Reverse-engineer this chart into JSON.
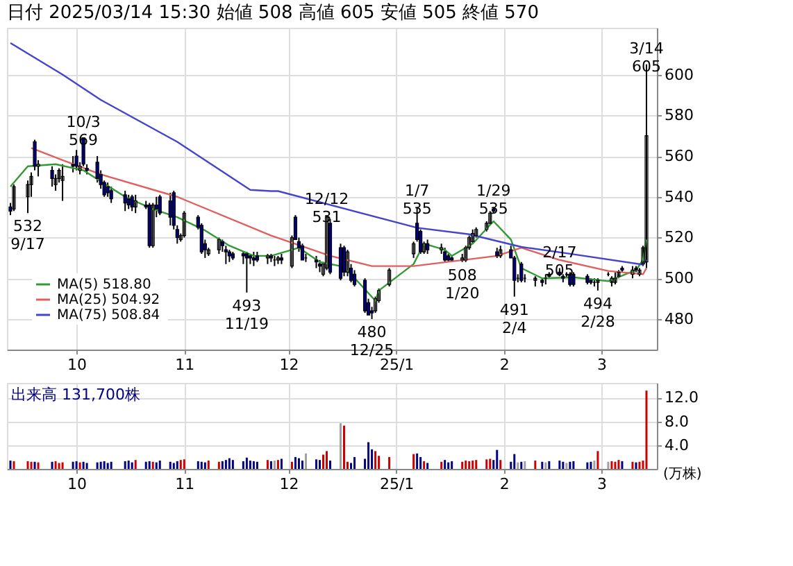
{
  "chart_data": [
    {
      "type": "candlestick",
      "title": "日付 2025/03/14 15:30  始値 508  高値 605  安値 505  終値 570",
      "x": [
        "2024-09-12",
        "2024-09-13",
        "2024-09-17",
        "2024-09-18",
        "2024-09-19",
        "2024-09-20",
        "2024-09-24",
        "2024-09-25",
        "2024-09-26",
        "2024-09-27",
        "2024-09-30",
        "2024-10-01",
        "2024-10-02",
        "2024-10-03",
        "2024-10-04",
        "2024-10-07",
        "2024-10-08",
        "2024-10-09",
        "2024-10-10",
        "2024-10-11",
        "2024-10-15",
        "2024-10-16",
        "2024-10-17",
        "2024-10-18",
        "2024-10-21",
        "2024-10-22",
        "2024-10-23",
        "2024-10-24",
        "2024-10-25",
        "2024-10-28",
        "2024-10-29",
        "2024-10-30",
        "2024-10-31",
        "2024-11-01",
        "2024-11-05",
        "2024-11-06",
        "2024-11-07",
        "2024-11-08",
        "2024-11-11",
        "2024-11-12",
        "2024-11-13",
        "2024-11-14",
        "2024-11-15",
        "2024-11-18",
        "2024-11-19",
        "2024-11-20",
        "2024-11-21",
        "2024-11-22",
        "2024-11-25",
        "2024-11-26",
        "2024-11-27",
        "2024-11-28",
        "2024-11-29",
        "2024-12-02",
        "2024-12-03",
        "2024-12-04",
        "2024-12-05",
        "2024-12-06",
        "2024-12-09",
        "2024-12-10",
        "2024-12-11",
        "2024-12-12",
        "2024-12-13",
        "2024-12-16",
        "2024-12-17",
        "2024-12-18",
        "2024-12-19",
        "2024-12-20",
        "2024-12-23",
        "2024-12-24",
        "2024-12-25",
        "2024-12-26",
        "2024-12-27",
        "2024-12-30",
        "2025-01-06",
        "2025-01-07",
        "2025-01-08",
        "2025-01-09",
        "2025-01-10",
        "2025-01-14",
        "2025-01-15",
        "2025-01-16",
        "2025-01-17",
        "2025-01-20",
        "2025-01-21",
        "2025-01-22",
        "2025-01-23",
        "2025-01-24",
        "2025-01-27",
        "2025-01-28",
        "2025-01-29",
        "2025-01-30",
        "2025-01-31",
        "2025-02-03",
        "2025-02-04",
        "2025-02-05",
        "2025-02-06",
        "2025-02-07",
        "2025-02-10",
        "2025-02-12",
        "2025-02-13",
        "2025-02-14",
        "2025-02-17",
        "2025-02-18",
        "2025-02-19",
        "2025-02-20",
        "2025-02-21",
        "2025-02-25",
        "2025-02-26",
        "2025-02-27",
        "2025-02-28",
        "2025-03-03",
        "2025-03-04",
        "2025-03-05",
        "2025-03-06",
        "2025-03-07",
        "2025-03-10",
        "2025-03-11",
        "2025-03-12",
        "2025-03-13",
        "2025-03-14"
      ],
      "ohlc": [
        [
          535,
          537,
          531,
          533
        ],
        [
          534,
          546,
          533,
          545
        ],
        [
          540,
          548,
          532,
          546
        ],
        [
          546,
          552,
          540,
          550
        ],
        [
          567,
          568,
          553,
          555
        ],
        [
          555,
          558,
          550,
          556
        ],
        [
          553,
          555,
          545,
          549
        ],
        [
          546,
          551,
          543,
          549
        ],
        [
          549,
          554,
          547,
          553
        ],
        [
          548,
          556,
          538,
          550
        ],
        [
          556,
          560,
          552,
          555
        ],
        [
          560,
          563,
          553,
          555
        ],
        [
          553,
          557,
          551,
          555
        ],
        [
          569,
          569,
          555,
          556
        ],
        [
          554,
          556,
          551,
          553
        ],
        [
          557,
          560,
          547,
          549
        ],
        [
          551,
          553,
          544,
          546
        ],
        [
          547,
          548,
          540,
          541
        ],
        [
          545,
          547,
          540,
          542
        ],
        [
          543,
          545,
          537,
          539
        ],
        [
          541,
          543,
          533,
          537
        ],
        [
          539,
          541,
          534,
          536
        ],
        [
          540,
          541,
          533,
          535
        ],
        [
          535,
          541,
          532,
          538
        ],
        [
          536,
          538,
          534,
          535
        ],
        [
          536,
          537,
          515,
          516
        ],
        [
          516,
          537,
          515,
          536
        ],
        [
          536,
          540,
          530,
          534
        ],
        [
          540,
          541,
          531,
          532
        ],
        [
          538,
          542,
          526,
          530
        ],
        [
          542,
          543,
          524,
          526
        ],
        [
          524,
          526,
          517,
          520
        ],
        [
          519,
          522,
          518,
          521
        ],
        [
          521,
          533,
          520,
          532
        ],
        [
          530,
          531,
          524,
          525
        ],
        [
          526,
          527,
          512,
          513
        ],
        [
          517,
          519,
          510,
          514
        ],
        [
          512,
          515,
          511,
          514
        ],
        [
          514,
          520,
          512,
          519
        ],
        [
          518,
          519,
          513,
          516
        ],
        [
          514,
          516,
          507,
          513
        ],
        [
          513,
          514,
          508,
          511
        ],
        [
          512,
          513,
          509,
          510
        ],
        [
          512,
          513,
          507,
          511
        ],
        [
          512,
          513,
          493,
          510
        ],
        [
          511,
          512,
          507,
          510
        ],
        [
          510,
          513,
          506,
          509
        ],
        [
          511,
          513,
          508,
          509
        ],
        [
          510,
          512,
          507,
          511
        ],
        [
          511,
          512,
          508,
          510
        ],
        [
          509,
          511,
          506,
          509
        ],
        [
          509,
          511,
          507,
          510
        ],
        [
          510,
          512,
          507,
          509
        ],
        [
          506,
          521,
          505,
          520
        ],
        [
          530,
          531,
          519,
          519
        ],
        [
          518,
          520,
          513,
          515
        ],
        [
          516,
          517,
          509,
          509
        ],
        [
          510,
          512,
          508,
          510
        ],
        [
          509,
          511,
          505,
          508
        ],
        [
          507,
          509,
          503,
          506
        ],
        [
          502,
          508,
          501,
          507
        ],
        [
          505,
          531,
          504,
          530
        ],
        [
          527,
          529,
          502,
          503
        ],
        [
          515,
          517,
          499,
          500
        ],
        [
          515,
          516,
          501,
          503
        ],
        [
          503,
          514,
          501,
          513
        ],
        [
          505,
          507,
          498,
          499
        ],
        [
          502,
          504,
          496,
          497
        ],
        [
          499,
          500,
          483,
          484
        ],
        [
          488,
          490,
          482,
          482
        ],
        [
          484,
          486,
          480,
          483
        ],
        [
          484,
          491,
          483,
          490
        ],
        [
          489,
          495,
          488,
          494
        ],
        [
          497,
          505,
          496,
          504
        ],
        [
          512,
          518,
          510,
          517
        ],
        [
          527,
          535,
          518,
          519
        ],
        [
          523,
          524,
          512,
          513
        ],
        [
          513,
          518,
          512,
          517
        ],
        [
          517,
          519,
          512,
          514
        ],
        [
          514,
          517,
          512,
          515
        ],
        [
          513,
          515,
          508,
          509
        ],
        [
          511,
          512,
          508,
          509
        ],
        [
          510,
          511,
          508,
          509
        ],
        [
          509,
          512,
          508,
          510
        ],
        [
          509,
          516,
          508,
          515
        ],
        [
          515,
          521,
          514,
          520
        ],
        [
          518,
          524,
          517,
          522
        ],
        [
          521,
          525,
          520,
          524
        ],
        [
          524,
          528,
          523,
          527
        ],
        [
          527,
          533,
          526,
          532
        ],
        [
          534,
          535,
          532,
          533
        ],
        [
          513,
          515,
          510,
          511
        ],
        [
          511,
          516,
          510,
          514
        ],
        [
          514,
          516,
          510,
          510
        ],
        [
          510,
          511,
          491,
          499
        ],
        [
          500,
          502,
          498,
          500
        ],
        [
          507,
          508,
          498,
          499
        ],
        [
          500,
          502,
          498,
          500
        ],
        [
          499,
          501,
          496,
          500
        ],
        [
          499,
          500,
          496,
          498
        ],
        [
          500,
          502,
          497,
          500
        ],
        [
          502,
          503,
          500,
          501
        ],
        [
          503,
          505,
          501,
          502
        ],
        [
          501,
          502,
          498,
          500
        ],
        [
          502,
          503,
          500,
          502
        ],
        [
          502,
          503,
          496,
          497
        ],
        [
          502,
          503,
          496,
          497
        ],
        [
          501,
          502,
          497,
          498
        ],
        [
          499,
          500,
          497,
          498
        ],
        [
          498,
          500,
          496,
          498
        ],
        [
          498,
          500,
          494,
          499
        ],
        [
          502,
          503,
          501,
          502
        ],
        [
          498,
          501,
          496,
          500
        ],
        [
          498,
          503,
          497,
          500
        ],
        [
          501,
          504,
          500,
          503
        ],
        [
          505,
          506,
          503,
          504
        ],
        [
          502,
          506,
          500,
          504
        ],
        [
          505,
          506,
          503,
          504
        ],
        [
          502,
          505,
          501,
          504
        ],
        [
          507,
          516,
          506,
          515
        ],
        [
          508,
          605,
          505,
          570
        ]
      ],
      "series": [
        {
          "name": "MA(5)  518.80",
          "type": "line",
          "color": "#339933",
          "x": [
            "2024-09-12",
            "2024-09-17",
            "2024-09-25",
            "2024-10-03",
            "2024-10-15",
            "2024-10-23",
            "2024-10-30",
            "2024-11-07",
            "2024-11-14",
            "2024-11-21",
            "2024-11-26",
            "2024-12-04",
            "2024-12-10",
            "2024-12-16",
            "2024-12-19",
            "2024-12-26",
            "2024-12-27",
            "2025-01-06",
            "2025-01-09",
            "2025-01-15",
            "2025-01-17",
            "2025-01-23",
            "2025-01-29",
            "2025-02-03",
            "2025-02-06",
            "2025-02-12",
            "2025-02-21",
            "2025-03-03",
            "2025-03-11",
            "2025-03-13",
            "2025-03-14"
          ],
          "values": [
            545,
            555,
            556,
            553,
            540,
            534,
            530,
            523.5,
            516,
            511,
            511,
            515,
            508,
            506,
            502,
            489,
            494,
            507,
            517,
            514,
            511,
            517,
            528,
            519,
            505,
            500,
            500.5,
            498.6,
            504,
            509,
            519
          ]
        },
        {
          "name": "MA(25)  504.92",
          "type": "line",
          "color": "#e06060",
          "x": [
            "2024-09-18",
            "2024-09-27",
            "2024-10-08",
            "2024-10-30",
            "2024-11-26",
            "2024-12-13",
            "2024-12-25",
            "2025-01-06",
            "2025-01-30",
            "2025-02-06",
            "2025-02-17",
            "2025-03-03",
            "2025-03-13",
            "2025-03-14"
          ],
          "values": [
            564,
            558,
            551,
            540,
            521,
            511,
            506,
            506,
            511,
            515,
            509,
            503.6,
            502,
            505
          ]
        },
        {
          "name": "MA(75)  508.84",
          "type": "line",
          "color": "#4444cc",
          "x": [
            "2024-09-12",
            "2024-09-27",
            "2024-10-08",
            "2024-10-30",
            "2024-11-20",
            "2024-11-26",
            "2024-11-28",
            "2025-01-07",
            "2025-01-22",
            "2025-02-06",
            "2025-02-19",
            "2025-03-13",
            "2025-03-14"
          ],
          "values": [
            615.5,
            600,
            587.6,
            567,
            543.4,
            542.8,
            542.8,
            524.8,
            521.6,
            515.4,
            512.3,
            506.7,
            509
          ]
        }
      ],
      "xlim": [
        "2024-09-11",
        "2025-03-17"
      ],
      "xticks": [
        {
          "value": "2024-10-01",
          "label": "10"
        },
        {
          "value": "2024-11-01",
          "label": "11"
        },
        {
          "value": "2024-12-01",
          "label": "12"
        },
        {
          "value": "2025-01-01",
          "label": "25/1"
        },
        {
          "value": "2025-02-01",
          "label": "2"
        },
        {
          "value": "2025-03-01",
          "label": "3"
        }
      ],
      "ylim": [
        465,
        623
      ],
      "yticks": [
        480,
        500,
        520,
        540,
        560,
        580,
        600
      ],
      "grid": true,
      "legend": "bottom left",
      "annotations": [
        {
          "text": "10/3\n569",
          "x": "2024-10-03",
          "y": 569
        },
        {
          "text": "532\n9/17",
          "x": "2024-09-17",
          "y": 532
        },
        {
          "text": "493\n11/19",
          "x": "2024-11-19",
          "y": 493
        },
        {
          "text": "12/12\n531",
          "x": "2024-12-12",
          "y": 531
        },
        {
          "text": "480\n12/25",
          "x": "2024-12-25",
          "y": 480
        },
        {
          "text": "1/7\n535",
          "x": "2025-01-07",
          "y": 535
        },
        {
          "text": "508\n1/20",
          "x": "2025-01-20",
          "y": 508
        },
        {
          "text": "1/29\n535",
          "x": "2025-01-29",
          "y": 535
        },
        {
          "text": "491\n2/4",
          "x": "2025-02-04",
          "y": 491
        },
        {
          "text": "2/17\n505",
          "x": "2025-02-17",
          "y": 505
        },
        {
          "text": "494\n2/28",
          "x": "2025-02-28",
          "y": 494
        },
        {
          "text": "3/14\n605",
          "x": "2025-03-14",
          "y": 605
        }
      ]
    },
    {
      "type": "bar",
      "ylabel": "(万株)",
      "annotations": [
        "出来高  131,700株"
      ],
      "values": [
        1.4,
        1.3,
        1.3,
        1.2,
        1.2,
        1.1,
        1.2,
        1.3,
        1.0,
        1.1,
        1.2,
        1.3,
        1.1,
        1.2,
        1.0,
        1.1,
        1.2,
        1.3,
        1.0,
        1.2,
        1.3,
        1.4,
        1.1,
        1.5,
        1.2,
        1.3,
        1.2,
        1.1,
        1.4,
        1.2,
        1.0,
        1.3,
        1.5,
        1.6,
        1.3,
        1.2,
        1.1,
        1.4,
        1.2,
        1.3,
        1.5,
        1.8,
        1.5,
        1.3,
        1.9,
        1.4,
        1.3,
        1.2,
        1.5,
        1.3,
        1.4,
        1.5,
        1.7,
        1.2,
        2.0,
        1.8,
        1.4,
        2.6,
        1.6,
        1.5,
        2.4,
        3.0,
        1.4,
        7.7,
        7.3,
        1.2,
        1.0,
        2.0,
        1.7,
        4.5,
        3.3,
        3.0,
        2.2,
        2.0,
        2.5,
        2.6,
        2.0,
        1.3,
        1.0,
        1.2,
        1.5,
        1.1,
        1.3,
        1.2,
        1.4,
        1.3,
        1.4,
        1.5,
        1.6,
        1.7,
        1.5,
        3.2,
        1.5,
        1.2,
        2.5,
        1.1,
        1.2,
        1.3,
        1.4,
        1.2,
        1.1,
        1.3,
        1.4,
        1.2,
        1.0,
        1.2,
        1.3,
        1.1,
        1.2,
        1.4,
        3.0,
        1.2,
        1.3,
        1.2,
        1.5,
        1.3,
        1.2,
        1.1,
        1.2,
        1.4,
        13.2
      ],
      "x": [
        "2024-09-12",
        "2024-09-13",
        "2024-09-17",
        "2024-09-18",
        "2024-09-19",
        "2024-09-20",
        "2024-09-24",
        "2024-09-25",
        "2024-09-26",
        "2024-09-27",
        "2024-09-30",
        "2024-10-01",
        "2024-10-02",
        "2024-10-03",
        "2024-10-04",
        "2024-10-07",
        "2024-10-08",
        "2024-10-09",
        "2024-10-10",
        "2024-10-11",
        "2024-10-15",
        "2024-10-16",
        "2024-10-17",
        "2024-10-18",
        "2024-10-21",
        "2024-10-22",
        "2024-10-23",
        "2024-10-24",
        "2024-10-25",
        "2024-10-28",
        "2024-10-29",
        "2024-10-30",
        "2024-10-31",
        "2024-11-01",
        "2024-11-05",
        "2024-11-06",
        "2024-11-07",
        "2024-11-08",
        "2024-11-11",
        "2024-11-12",
        "2024-11-13",
        "2024-11-14",
        "2024-11-15",
        "2024-11-18",
        "2024-11-19",
        "2024-11-20",
        "2024-11-21",
        "2024-11-22",
        "2024-11-25",
        "2024-11-26",
        "2024-11-27",
        "2024-11-28",
        "2024-11-29",
        "2024-12-02",
        "2024-12-03",
        "2024-12-04",
        "2024-12-05",
        "2024-12-06",
        "2024-12-09",
        "2024-12-10",
        "2024-12-11",
        "2024-12-12",
        "2024-12-13",
        "2024-12-16",
        "2024-12-17",
        "2024-12-18",
        "2024-12-19",
        "2024-12-20",
        "2024-12-23",
        "2024-12-24",
        "2024-12-25",
        "2024-12-26",
        "2024-12-27",
        "2024-12-30",
        "2025-01-06",
        "2025-01-07",
        "2025-01-08",
        "2025-01-09",
        "2025-01-10",
        "2025-01-14",
        "2025-01-15",
        "2025-01-16",
        "2025-01-17",
        "2025-01-20",
        "2025-01-21",
        "2025-01-22",
        "2025-01-23",
        "2025-01-24",
        "2025-01-27",
        "2025-01-28",
        "2025-01-29",
        "2025-01-30",
        "2025-01-31",
        "2025-02-03",
        "2025-02-04",
        "2025-02-05",
        "2025-02-06",
        "2025-02-07",
        "2025-02-10",
        "2025-02-12",
        "2025-02-13",
        "2025-02-14",
        "2025-02-17",
        "2025-02-18",
        "2025-02-19",
        "2025-02-20",
        "2025-02-21",
        "2025-02-25",
        "2025-02-26",
        "2025-02-27",
        "2025-02-28",
        "2025-03-03",
        "2025-03-04",
        "2025-03-05",
        "2025-03-06",
        "2025-03-07",
        "2025-03-10",
        "2025-03-11",
        "2025-03-12",
        "2025-03-13",
        "2025-03-14"
      ],
      "colors": [
        "#000080",
        "#cc0000",
        "#cc0000",
        "#cc0000",
        "#000080",
        "#cc0000",
        "#000080",
        "#cc0000",
        "#cc0000",
        "#cc0000",
        "#000080",
        "#000080",
        "#cc0000",
        "#000080",
        "#000080",
        "#000080",
        "#000080",
        "#000080",
        "#000080",
        "#000080",
        "#000080",
        "#000080",
        "#000080",
        "#cc0000",
        "#000080",
        "#000080",
        "#cc0000",
        "#000080",
        "#000080",
        "#000080",
        "#000080",
        "#000080",
        "#cc0000",
        "#cc0000",
        "#000080",
        "#000080",
        "#000080",
        "#cc0000",
        "#cc0000",
        "#000080",
        "#000080",
        "#000080",
        "#000080",
        "#000080",
        "#000080",
        "#000080",
        "#000080",
        "#000080",
        "#cc0000",
        "#000080",
        "#a0a0a0",
        "#cc0000",
        "#000080",
        "#cc0000",
        "#000080",
        "#000080",
        "#000080",
        "#a0a0a0",
        "#000080",
        "#000080",
        "#cc0000",
        "#cc0000",
        "#000080",
        "#a0a0a0",
        "#cc0000",
        "#cc0000",
        "#000080",
        "#000080",
        "#000080",
        "#000080",
        "#000080",
        "#cc0000",
        "#cc0000",
        "#cc0000",
        "#cc0000",
        "#000080",
        "#000080",
        "#cc0000",
        "#000080",
        "#cc0000",
        "#000080",
        "#000080",
        "#000080",
        "#cc0000",
        "#cc0000",
        "#cc0000",
        "#cc0000",
        "#cc0000",
        "#cc0000",
        "#cc0000",
        "#000080",
        "#000080",
        "#cc0000",
        "#000080",
        "#000080",
        "#a0a0a0",
        "#000080",
        "#a0a0a0",
        "#cc0000",
        "#000080",
        "#a0a0a0",
        "#000080",
        "#000080",
        "#000080",
        "#a0a0a0",
        "#000080",
        "#000080",
        "#000080",
        "#000080",
        "#a0a0a0",
        "#cc0000",
        "#a0a0a0",
        "#cc0000",
        "#cc0000",
        "#cc0000",
        "#000080",
        "#cc0000",
        "#000080",
        "#cc0000",
        "#cc0000",
        "#cc0000"
      ],
      "xlim": [
        "2024-09-11",
        "2025-03-17"
      ],
      "xticks": [
        {
          "value": "2024-10-01",
          "label": "10"
        },
        {
          "value": "2024-11-01",
          "label": "11"
        },
        {
          "value": "2024-12-01",
          "label": "12"
        },
        {
          "value": "2025-01-01",
          "label": "25/1"
        },
        {
          "value": "2025-02-01",
          "label": "2"
        },
        {
          "value": "2025-03-01",
          "label": "3"
        }
      ],
      "ylim": [
        0,
        14.5
      ],
      "yticks": [
        {
          "value": 4,
          "label": "4.0"
        },
        {
          "value": 8,
          "label": "8.0"
        },
        {
          "value": 12,
          "label": "12.0"
        }
      ],
      "grid": true
    }
  ]
}
